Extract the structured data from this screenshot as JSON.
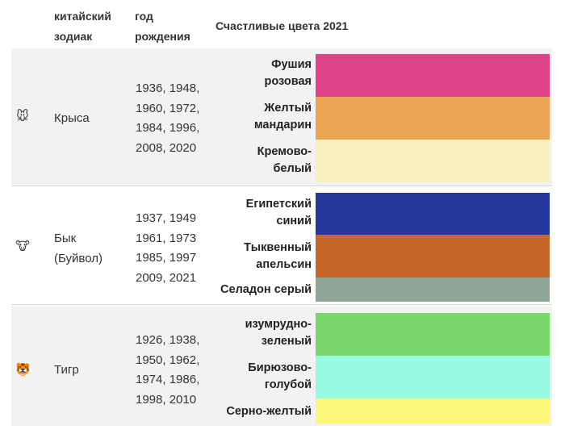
{
  "headers": {
    "zodiac": "китайский зодиак",
    "birth_year": "год рождения",
    "colors": "Счастливые цвета 2021"
  },
  "rows": [
    {
      "icon": "🐭",
      "icon_name": "rat-icon",
      "name": "Крыса",
      "years": "1936, 1948, 1960, 1972, 1984, 1996, 2008, 2020",
      "colors": [
        {
          "label": "Фушия розовая",
          "hex": "#dd4488"
        },
        {
          "label": "Желтый мандарин",
          "hex": "#e8a452"
        },
        {
          "label": "Кремово-белый",
          "hex": "#f9f0bf"
        }
      ]
    },
    {
      "icon": "🐮",
      "icon_name": "ox-icon",
      "name": "Бык (Буйвол)",
      "years": "1937, 1949 1961, 1973 1985, 1997 2009, 2021",
      "colors": [
        {
          "label": "Египетский синий",
          "hex": "#25399c"
        },
        {
          "label": "Тыквенный апельсин",
          "hex": "#c6672a"
        },
        {
          "label": "Селадон серый",
          "hex": "#8fa597"
        }
      ]
    },
    {
      "icon": "🐯",
      "icon_name": "tiger-icon",
      "name": "Тигр",
      "years": "1926, 1938, 1950, 1962, 1974, 1986, 1998, 2010",
      "colors": [
        {
          "label": "изумрудно-зеленый",
          "hex": "#78d66a"
        },
        {
          "label": "Бирюзово-голубой",
          "hex": "#96fbe2"
        },
        {
          "label": "Серно-желтый",
          "hex": "#fcf778"
        }
      ]
    }
  ]
}
